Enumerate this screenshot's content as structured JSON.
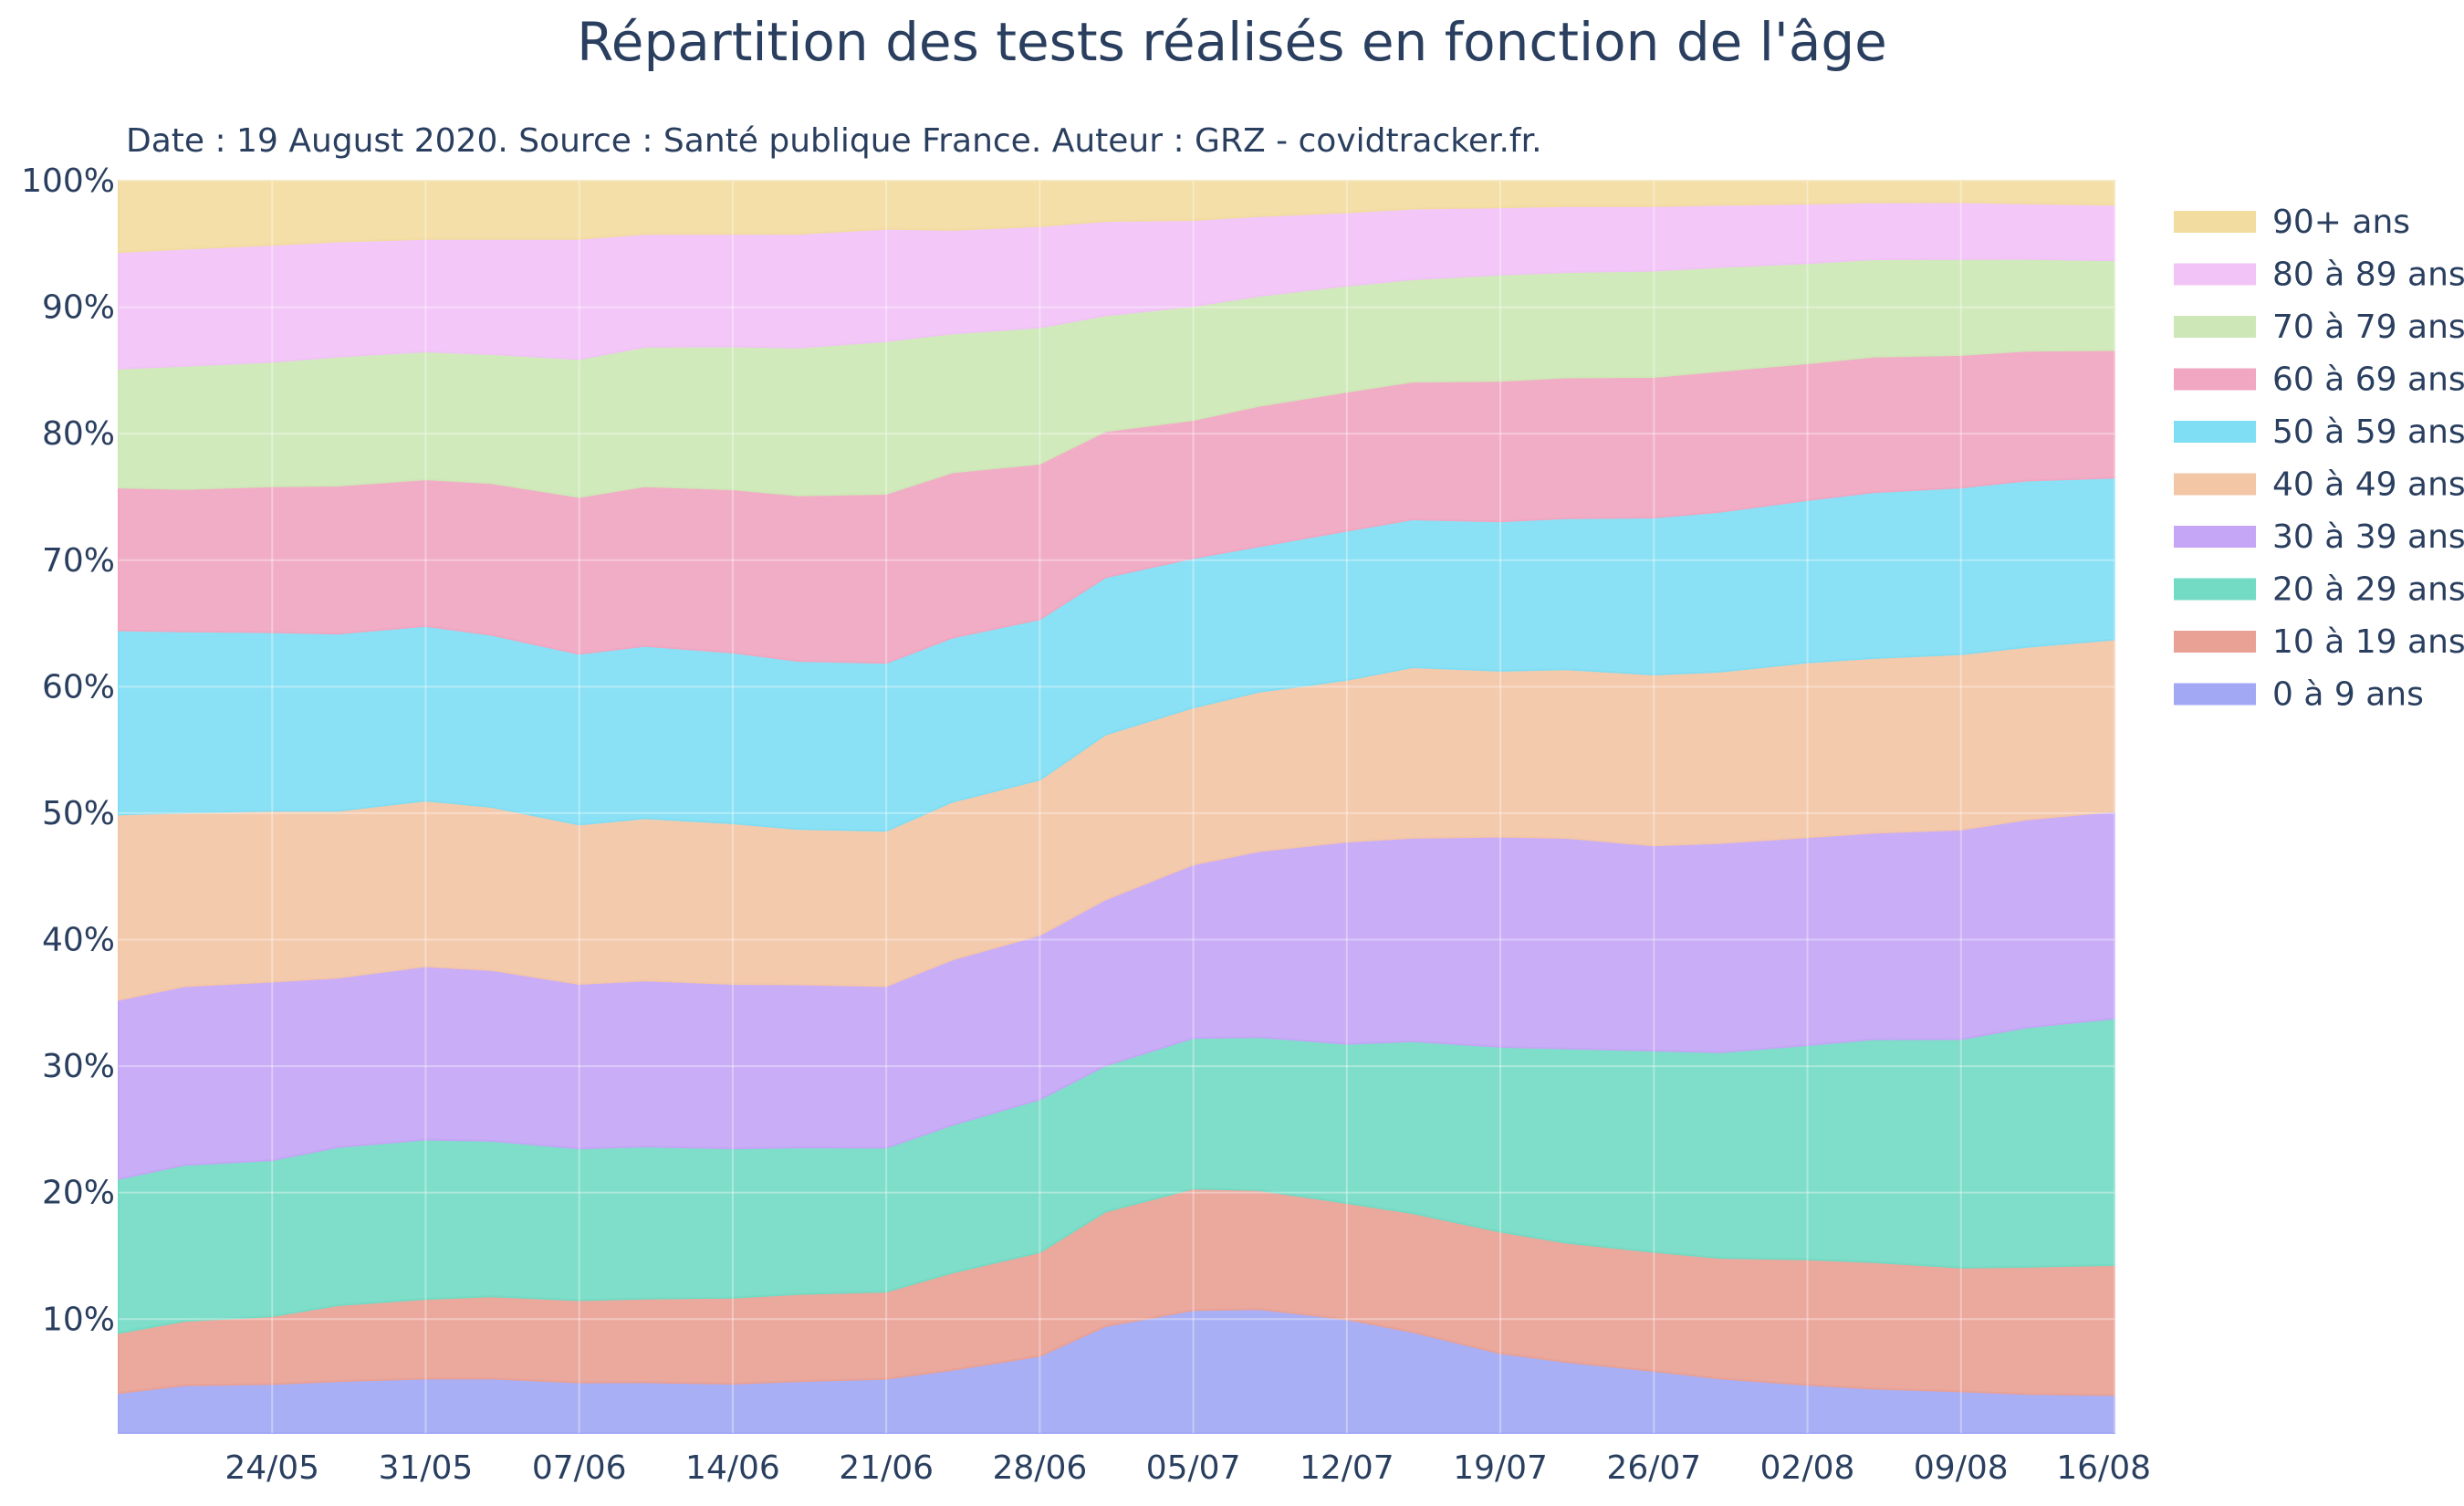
{
  "chart_data": {
    "type": "area",
    "title": "Répartition des tests  réalisés en fonction de l'âge",
    "subtitle": "Date : 19 August 2020. Source : Santé publique France. Auteur : GRZ - covidtracker.fr.",
    "stack": "percent",
    "ylim": [
      1,
      100
    ],
    "yticks": [
      "10%",
      "20%",
      "30%",
      "40%",
      "50%",
      "60%",
      "70%",
      "80%",
      "90%",
      "100%"
    ],
    "ytick_values": [
      10,
      20,
      30,
      40,
      50,
      60,
      70,
      80,
      90,
      100
    ],
    "x_dates": [
      "2020-05-17",
      "2020-05-20",
      "2020-05-24",
      "2020-05-27",
      "2020-05-31",
      "2020-06-03",
      "2020-06-07",
      "2020-06-10",
      "2020-06-14",
      "2020-06-17",
      "2020-06-21",
      "2020-06-24",
      "2020-06-28",
      "2020-07-01",
      "2020-07-05",
      "2020-07-08",
      "2020-07-12",
      "2020-07-15",
      "2020-07-19",
      "2020-07-22",
      "2020-07-26",
      "2020-07-29",
      "2020-08-02",
      "2020-08-05",
      "2020-08-09",
      "2020-08-12",
      "2020-08-16"
    ],
    "xticks": [
      "24/05",
      "31/05",
      "07/06",
      "14/06",
      "21/06",
      "28/06",
      "05/07",
      "12/07",
      "19/07",
      "26/07",
      "02/08",
      "09/08",
      "16/08"
    ],
    "xtick_dates": [
      "2020-05-24",
      "2020-05-31",
      "2020-06-07",
      "2020-06-14",
      "2020-06-21",
      "2020-06-28",
      "2020-07-05",
      "2020-07-12",
      "2020-07-19",
      "2020-07-26",
      "2020-08-02",
      "2020-08-09",
      "2020-08-16"
    ],
    "series": [
      {
        "name": "0 à 9 ans",
        "color": "#a2a8f4",
        "values": [
          4.2,
          4.8,
          4.9,
          5.1,
          5.3,
          5.3,
          5.0,
          5.0,
          4.9,
          5.1,
          5.3,
          6.0,
          7.1,
          9.5,
          10.7,
          10.8,
          10.0,
          9.0,
          7.3,
          6.6,
          5.9,
          5.3,
          4.8,
          4.5,
          4.3,
          4.1,
          4.0
        ]
      },
      {
        "name": "10 à 19 ans",
        "color": "#e9a195",
        "values": [
          4.8,
          5.1,
          5.4,
          6.0,
          6.3,
          6.5,
          6.5,
          6.6,
          6.8,
          6.9,
          6.9,
          7.7,
          8.2,
          9.1,
          9.6,
          9.4,
          9.2,
          9.4,
          9.6,
          9.4,
          9.4,
          9.5,
          9.9,
          10.0,
          9.8,
          10.1,
          10.3
        ]
      },
      {
        "name": "20 à 29 ans",
        "color": "#73dbc4",
        "values": [
          12.3,
          12.4,
          12.4,
          12.5,
          12.6,
          12.3,
          12.0,
          12.0,
          11.8,
          11.6,
          11.4,
          11.7,
          12.1,
          11.6,
          11.9,
          12.1,
          12.6,
          13.6,
          14.6,
          15.3,
          15.9,
          16.2,
          16.9,
          17.6,
          18.1,
          19.0,
          19.5
        ]
      },
      {
        "name": "30 à 39 ans",
        "color": "#c5a6f6",
        "values": [
          14.3,
          14.2,
          14.2,
          13.4,
          13.7,
          13.5,
          13.0,
          13.1,
          13.0,
          12.9,
          12.8,
          13.1,
          13.0,
          13.2,
          13.7,
          14.7,
          16.0,
          16.1,
          16.6,
          16.6,
          16.2,
          16.5,
          16.4,
          16.3,
          16.6,
          16.5,
          16.4
        ]
      },
      {
        "name": "40 à 49 ans",
        "color": "#f3c6a6",
        "values": [
          14.8,
          13.8,
          13.6,
          13.2,
          13.1,
          12.9,
          12.6,
          12.8,
          12.7,
          12.3,
          12.3,
          12.5,
          12.3,
          13.1,
          12.4,
          12.6,
          12.8,
          13.5,
          13.1,
          13.3,
          13.5,
          13.5,
          13.8,
          13.8,
          13.9,
          13.7,
          13.6
        ]
      },
      {
        "name": "50 à 59 ans",
        "color": "#80def4",
        "values": [
          14.7,
          14.4,
          14.2,
          14.0,
          13.8,
          13.6,
          13.5,
          13.6,
          13.5,
          13.3,
          13.3,
          13.0,
          12.7,
          12.5,
          11.8,
          11.5,
          11.8,
          11.7,
          11.8,
          11.9,
          12.4,
          12.6,
          12.8,
          13.1,
          13.2,
          13.2,
          12.8
        ]
      },
      {
        "name": "60 à 69 ans",
        "color": "#f1a6c1",
        "values": [
          11.4,
          11.3,
          11.6,
          11.7,
          11.6,
          12.0,
          12.4,
          12.6,
          12.9,
          13.1,
          13.4,
          13.1,
          12.3,
          11.6,
          10.9,
          11.1,
          11.0,
          10.9,
          11.1,
          11.1,
          11.1,
          11.1,
          10.8,
          10.7,
          10.5,
          10.3,
          10.1
        ]
      },
      {
        "name": "70 à 79 ans",
        "color": "#cde8b6",
        "values": [
          9.5,
          9.8,
          9.9,
          10.2,
          10.1,
          10.2,
          10.9,
          11.0,
          11.3,
          11.7,
          12.1,
          11.0,
          10.8,
          9.2,
          9.0,
          8.7,
          8.4,
          8.1,
          8.4,
          8.3,
          8.4,
          8.2,
          7.9,
          7.7,
          7.6,
          7.3,
          7.1
        ]
      },
      {
        "name": "80 à 89 ans",
        "color": "#f2c3f7",
        "values": [
          9.3,
          9.3,
          9.3,
          9.1,
          8.9,
          9.1,
          9.5,
          8.9,
          8.9,
          9.0,
          8.9,
          8.2,
          8.0,
          7.5,
          6.8,
          6.3,
          5.8,
          5.6,
          5.3,
          5.2,
          5.1,
          4.9,
          4.7,
          4.5,
          4.5,
          4.4,
          4.4
        ]
      },
      {
        "name": "90+ ans",
        "color": "#f2dca0",
        "values": [
          5.7,
          5.4,
          5.1,
          4.8,
          4.6,
          4.6,
          4.6,
          4.2,
          4.2,
          4.2,
          3.8,
          3.9,
          3.6,
          3.2,
          3.1,
          2.8,
          2.5,
          2.2,
          2.1,
          2.0,
          2.0,
          1.9,
          1.8,
          1.7,
          1.7,
          1.8,
          1.9
        ]
      }
    ],
    "legend_position": "right",
    "grid": true,
    "background": "#ffffff",
    "grid_color": "#e7ecf4",
    "text_color": "#2a3f5f"
  }
}
